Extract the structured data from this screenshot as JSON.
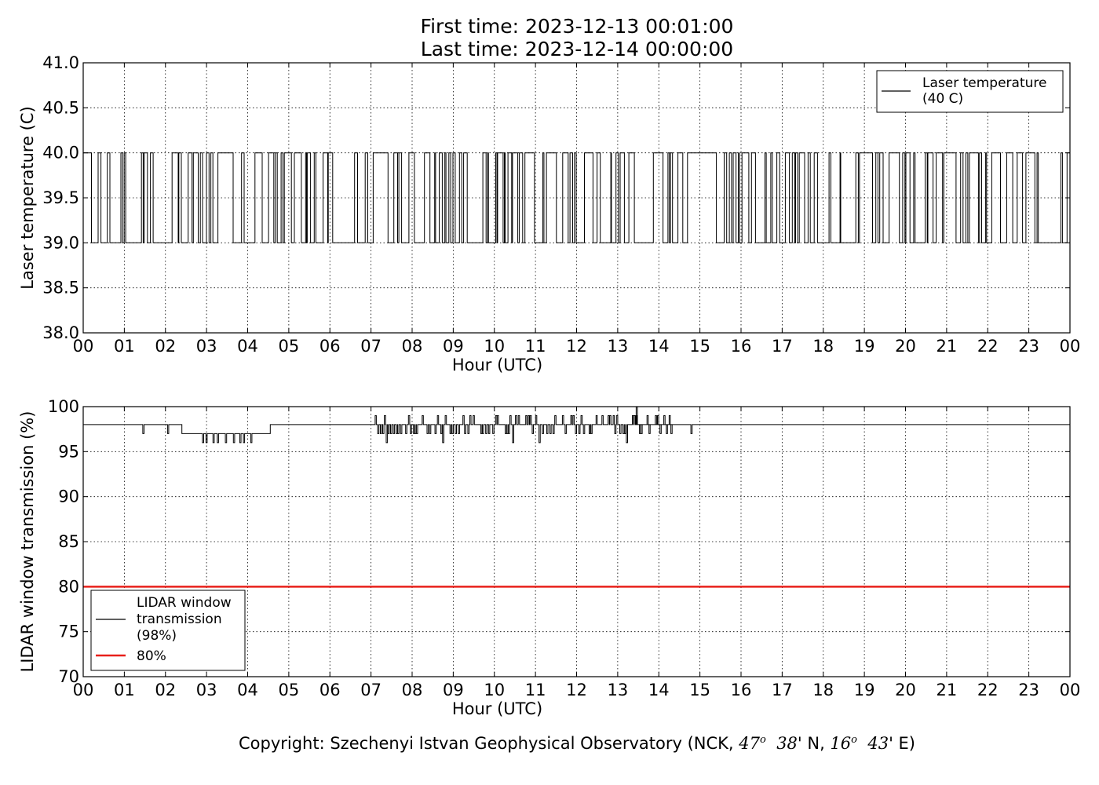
{
  "header": {
    "first_time": "First time: 2023-12-13 00:01:00",
    "last_time": "Last time: 2023-12-14 00:00:00"
  },
  "footer": {
    "prefix": "Copyright: Szechenyi Istvan Geophysical Observatory (NCK, ",
    "lat_deg": "47",
    "lat_min": "38",
    "lat_suffix": "' N, ",
    "lon_deg": "16",
    "lon_min": "43",
    "lon_suffix": "' E)"
  },
  "chart_data": [
    {
      "type": "line",
      "ylabel": "Laser temperature (C)",
      "xlabel": "Hour (UTC)",
      "xlim": [
        0,
        24
      ],
      "ylim": [
        38.0,
        41.0
      ],
      "x_tick_labels": [
        "00",
        "01",
        "02",
        "03",
        "04",
        "05",
        "06",
        "07",
        "08",
        "09",
        "10",
        "11",
        "12",
        "13",
        "14",
        "15",
        "16",
        "17",
        "18",
        "19",
        "20",
        "21",
        "22",
        "23",
        "00"
      ],
      "y_ticks": [
        38.0,
        38.5,
        39.0,
        39.5,
        40.0,
        40.5,
        41.0
      ],
      "y_tick_labels": [
        "38.0",
        "38.5",
        "39.0",
        "39.5",
        "40.0",
        "40.5",
        "41.0"
      ],
      "grid": true,
      "legend_position": "top-right",
      "series": [
        {
          "name": "Laser temperature\n(40 C)",
          "legend_lines": [
            "Laser temperature",
            "(40 C)"
          ],
          "color": "#000000",
          "baseline": 40.0,
          "low": 39.0,
          "pattern": "frequent switching between 40.0 and 39.0 C throughout the day; steady 40.0 C from ~14.8 h to ~15.4 h; longer 39.0 C periods near 00.6–01.3 h, 01.7–02.0 h, 06.0–06.6 h and 13.4–13.8 h"
        }
      ]
    },
    {
      "type": "line",
      "ylabel": "LIDAR window transmission (%)",
      "xlabel": "Hour (UTC)",
      "xlim": [
        0,
        24
      ],
      "ylim": [
        70,
        100
      ],
      "x_tick_labels": [
        "00",
        "01",
        "02",
        "03",
        "04",
        "05",
        "06",
        "07",
        "08",
        "09",
        "10",
        "11",
        "12",
        "13",
        "14",
        "15",
        "16",
        "17",
        "18",
        "19",
        "20",
        "21",
        "22",
        "23",
        "00"
      ],
      "y_ticks": [
        70,
        75,
        80,
        85,
        90,
        95,
        100
      ],
      "y_tick_labels": [
        "70",
        "75",
        "80",
        "85",
        "90",
        "95",
        "100"
      ],
      "grid": true,
      "legend_position": "bottom-left",
      "series": [
        {
          "name": "LIDAR window\ntransmission\n(98%)",
          "legend_lines": [
            "LIDAR window",
            "transmission",
            "(98%)"
          ],
          "color": "#000000",
          "baseline": 98,
          "pattern": "mostly 98%; single dips to 97% near 1.45 h and 2.05 h; 97% from 2.4 h to 4.55 h with dips to 96% between 2.9 h and 4.1 h; fluctuating 96–99% between 7.1 h and 14.3 h with a spike to 100% at ~13.45 h; dip to 97% at ~14.8 h; constant 98% thereafter"
        },
        {
          "name": "80%",
          "legend_lines": [
            "80%"
          ],
          "color": "#e8201a",
          "constant": 80
        }
      ]
    }
  ]
}
